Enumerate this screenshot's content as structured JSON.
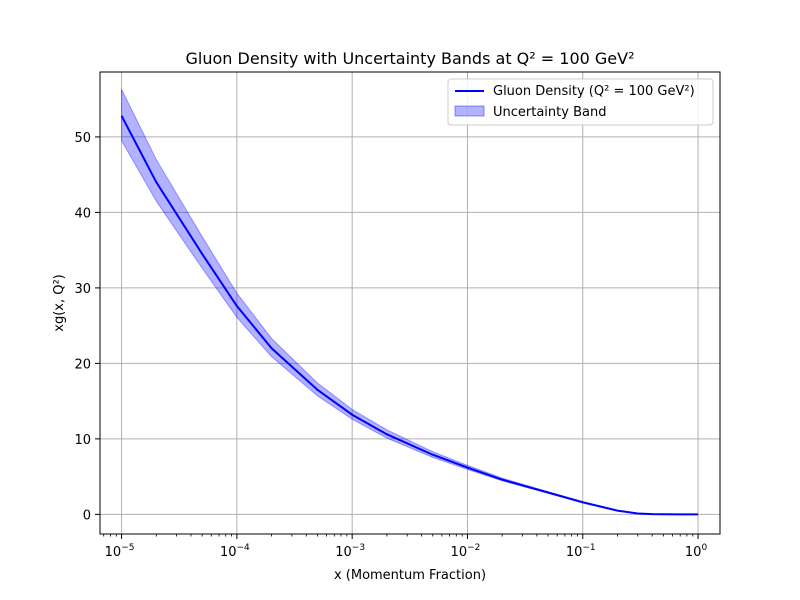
{
  "chart_data": {
    "type": "line",
    "title": "Gluon Density with Uncertainty Bands at Q² = 100 GeV²",
    "xlabel": "x (Momentum Fraction)",
    "ylabel": "xg(x, Q²)",
    "xscale": "log",
    "xlim": [
      6.5e-06,
      1.55
    ],
    "ylim": [
      -2.6,
      58.6
    ],
    "grid": true,
    "legend_position": "top-right",
    "x_ticks": [
      {
        "value": 1e-05,
        "base": "10",
        "exp": "−5"
      },
      {
        "value": 0.0001,
        "base": "10",
        "exp": "−4"
      },
      {
        "value": 0.001,
        "base": "10",
        "exp": "−3"
      },
      {
        "value": 0.01,
        "base": "10",
        "exp": "−2"
      },
      {
        "value": 0.1,
        "base": "10",
        "exp": "−1"
      },
      {
        "value": 1,
        "base": "10",
        "exp": "0"
      }
    ],
    "y_ticks": [
      0,
      10,
      20,
      30,
      40,
      50
    ],
    "series": [
      {
        "name": "Gluon Density (Q² = 100 GeV²)",
        "kind": "line",
        "color": "#0000ff",
        "x": [
          1e-05,
          2e-05,
          5e-05,
          0.0001,
          0.0002,
          0.0005,
          0.001,
          0.002,
          0.005,
          0.01,
          0.02,
          0.05,
          0.1,
          0.2,
          0.3,
          0.4,
          0.5,
          0.7,
          1.0
        ],
        "y": [
          52.8,
          44.0,
          34.5,
          27.6,
          22.0,
          16.5,
          13.2,
          10.6,
          7.9,
          6.2,
          4.6,
          2.9,
          1.6,
          0.5,
          0.12,
          0.03,
          0.01,
          0.0,
          0.0
        ]
      },
      {
        "name": "Uncertainty Band",
        "kind": "band",
        "color": "#0000ff",
        "opacity": 0.3,
        "x": [
          1e-05,
          2e-05,
          5e-05,
          0.0001,
          0.0002,
          0.0005,
          0.001,
          0.002,
          0.005,
          0.01,
          0.02,
          0.05,
          0.1,
          0.2,
          0.3,
          0.4,
          0.5,
          0.7,
          1.0
        ],
        "lower": [
          49.5,
          41.5,
          32.6,
          26.1,
          20.9,
          15.7,
          12.6,
          10.1,
          7.55,
          5.95,
          4.45,
          2.8,
          1.5,
          0.45,
          0.1,
          0.02,
          0.0,
          0.0,
          0.0
        ],
        "upper": [
          56.3,
          47.0,
          36.8,
          29.3,
          23.3,
          17.4,
          13.9,
          11.2,
          8.3,
          6.5,
          4.8,
          3.0,
          1.7,
          0.55,
          0.14,
          0.04,
          0.01,
          0.0,
          0.0
        ]
      }
    ]
  }
}
